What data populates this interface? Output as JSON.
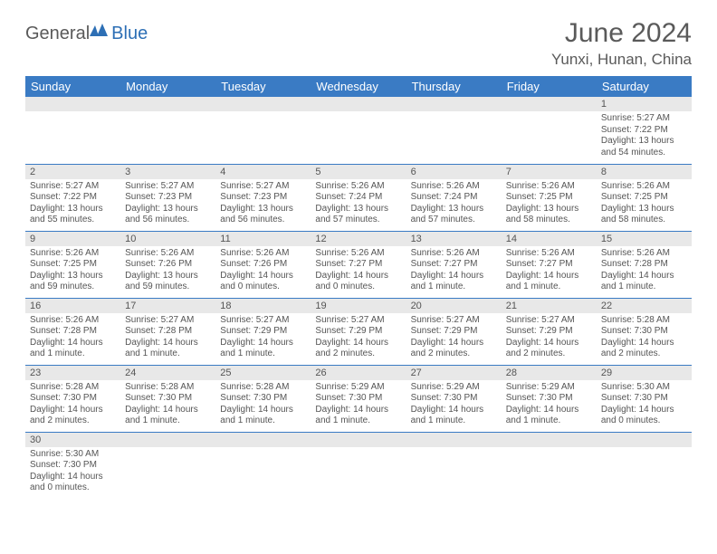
{
  "brand": {
    "part1": "General",
    "part2": "Blue",
    "icon_color": "#2d6fb5"
  },
  "header": {
    "title": "June 2024",
    "location": "Yunxi, Hunan, China"
  },
  "colors": {
    "header_bg": "#3a7bc4",
    "header_text": "#ffffff",
    "daynum_bg": "#e8e8e8",
    "row_divider": "#3a7bc4",
    "body_text": "#555555"
  },
  "typography": {
    "title_fontsize": 30,
    "location_fontsize": 17,
    "dayheader_fontsize": 13,
    "cell_fontsize": 10
  },
  "day_headers": [
    "Sunday",
    "Monday",
    "Tuesday",
    "Wednesday",
    "Thursday",
    "Friday",
    "Saturday"
  ],
  "weeks": [
    [
      {
        "day": "",
        "sunrise": "",
        "sunset": "",
        "daylight": ""
      },
      {
        "day": "",
        "sunrise": "",
        "sunset": "",
        "daylight": ""
      },
      {
        "day": "",
        "sunrise": "",
        "sunset": "",
        "daylight": ""
      },
      {
        "day": "",
        "sunrise": "",
        "sunset": "",
        "daylight": ""
      },
      {
        "day": "",
        "sunrise": "",
        "sunset": "",
        "daylight": ""
      },
      {
        "day": "",
        "sunrise": "",
        "sunset": "",
        "daylight": ""
      },
      {
        "day": "1",
        "sunrise": "Sunrise: 5:27 AM",
        "sunset": "Sunset: 7:22 PM",
        "daylight": "Daylight: 13 hours and 54 minutes."
      }
    ],
    [
      {
        "day": "2",
        "sunrise": "Sunrise: 5:27 AM",
        "sunset": "Sunset: 7:22 PM",
        "daylight": "Daylight: 13 hours and 55 minutes."
      },
      {
        "day": "3",
        "sunrise": "Sunrise: 5:27 AM",
        "sunset": "Sunset: 7:23 PM",
        "daylight": "Daylight: 13 hours and 56 minutes."
      },
      {
        "day": "4",
        "sunrise": "Sunrise: 5:27 AM",
        "sunset": "Sunset: 7:23 PM",
        "daylight": "Daylight: 13 hours and 56 minutes."
      },
      {
        "day": "5",
        "sunrise": "Sunrise: 5:26 AM",
        "sunset": "Sunset: 7:24 PM",
        "daylight": "Daylight: 13 hours and 57 minutes."
      },
      {
        "day": "6",
        "sunrise": "Sunrise: 5:26 AM",
        "sunset": "Sunset: 7:24 PM",
        "daylight": "Daylight: 13 hours and 57 minutes."
      },
      {
        "day": "7",
        "sunrise": "Sunrise: 5:26 AM",
        "sunset": "Sunset: 7:25 PM",
        "daylight": "Daylight: 13 hours and 58 minutes."
      },
      {
        "day": "8",
        "sunrise": "Sunrise: 5:26 AM",
        "sunset": "Sunset: 7:25 PM",
        "daylight": "Daylight: 13 hours and 58 minutes."
      }
    ],
    [
      {
        "day": "9",
        "sunrise": "Sunrise: 5:26 AM",
        "sunset": "Sunset: 7:25 PM",
        "daylight": "Daylight: 13 hours and 59 minutes."
      },
      {
        "day": "10",
        "sunrise": "Sunrise: 5:26 AM",
        "sunset": "Sunset: 7:26 PM",
        "daylight": "Daylight: 13 hours and 59 minutes."
      },
      {
        "day": "11",
        "sunrise": "Sunrise: 5:26 AM",
        "sunset": "Sunset: 7:26 PM",
        "daylight": "Daylight: 14 hours and 0 minutes."
      },
      {
        "day": "12",
        "sunrise": "Sunrise: 5:26 AM",
        "sunset": "Sunset: 7:27 PM",
        "daylight": "Daylight: 14 hours and 0 minutes."
      },
      {
        "day": "13",
        "sunrise": "Sunrise: 5:26 AM",
        "sunset": "Sunset: 7:27 PM",
        "daylight": "Daylight: 14 hours and 1 minute."
      },
      {
        "day": "14",
        "sunrise": "Sunrise: 5:26 AM",
        "sunset": "Sunset: 7:27 PM",
        "daylight": "Daylight: 14 hours and 1 minute."
      },
      {
        "day": "15",
        "sunrise": "Sunrise: 5:26 AM",
        "sunset": "Sunset: 7:28 PM",
        "daylight": "Daylight: 14 hours and 1 minute."
      }
    ],
    [
      {
        "day": "16",
        "sunrise": "Sunrise: 5:26 AM",
        "sunset": "Sunset: 7:28 PM",
        "daylight": "Daylight: 14 hours and 1 minute."
      },
      {
        "day": "17",
        "sunrise": "Sunrise: 5:27 AM",
        "sunset": "Sunset: 7:28 PM",
        "daylight": "Daylight: 14 hours and 1 minute."
      },
      {
        "day": "18",
        "sunrise": "Sunrise: 5:27 AM",
        "sunset": "Sunset: 7:29 PM",
        "daylight": "Daylight: 14 hours and 1 minute."
      },
      {
        "day": "19",
        "sunrise": "Sunrise: 5:27 AM",
        "sunset": "Sunset: 7:29 PM",
        "daylight": "Daylight: 14 hours and 2 minutes."
      },
      {
        "day": "20",
        "sunrise": "Sunrise: 5:27 AM",
        "sunset": "Sunset: 7:29 PM",
        "daylight": "Daylight: 14 hours and 2 minutes."
      },
      {
        "day": "21",
        "sunrise": "Sunrise: 5:27 AM",
        "sunset": "Sunset: 7:29 PM",
        "daylight": "Daylight: 14 hours and 2 minutes."
      },
      {
        "day": "22",
        "sunrise": "Sunrise: 5:28 AM",
        "sunset": "Sunset: 7:30 PM",
        "daylight": "Daylight: 14 hours and 2 minutes."
      }
    ],
    [
      {
        "day": "23",
        "sunrise": "Sunrise: 5:28 AM",
        "sunset": "Sunset: 7:30 PM",
        "daylight": "Daylight: 14 hours and 2 minutes."
      },
      {
        "day": "24",
        "sunrise": "Sunrise: 5:28 AM",
        "sunset": "Sunset: 7:30 PM",
        "daylight": "Daylight: 14 hours and 1 minute."
      },
      {
        "day": "25",
        "sunrise": "Sunrise: 5:28 AM",
        "sunset": "Sunset: 7:30 PM",
        "daylight": "Daylight: 14 hours and 1 minute."
      },
      {
        "day": "26",
        "sunrise": "Sunrise: 5:29 AM",
        "sunset": "Sunset: 7:30 PM",
        "daylight": "Daylight: 14 hours and 1 minute."
      },
      {
        "day": "27",
        "sunrise": "Sunrise: 5:29 AM",
        "sunset": "Sunset: 7:30 PM",
        "daylight": "Daylight: 14 hours and 1 minute."
      },
      {
        "day": "28",
        "sunrise": "Sunrise: 5:29 AM",
        "sunset": "Sunset: 7:30 PM",
        "daylight": "Daylight: 14 hours and 1 minute."
      },
      {
        "day": "29",
        "sunrise": "Sunrise: 5:30 AM",
        "sunset": "Sunset: 7:30 PM",
        "daylight": "Daylight: 14 hours and 0 minutes."
      }
    ],
    [
      {
        "day": "30",
        "sunrise": "Sunrise: 5:30 AM",
        "sunset": "Sunset: 7:30 PM",
        "daylight": "Daylight: 14 hours and 0 minutes."
      },
      {
        "day": "",
        "sunrise": "",
        "sunset": "",
        "daylight": ""
      },
      {
        "day": "",
        "sunrise": "",
        "sunset": "",
        "daylight": ""
      },
      {
        "day": "",
        "sunrise": "",
        "sunset": "",
        "daylight": ""
      },
      {
        "day": "",
        "sunrise": "",
        "sunset": "",
        "daylight": ""
      },
      {
        "day": "",
        "sunrise": "",
        "sunset": "",
        "daylight": ""
      },
      {
        "day": "",
        "sunrise": "",
        "sunset": "",
        "daylight": ""
      }
    ]
  ]
}
